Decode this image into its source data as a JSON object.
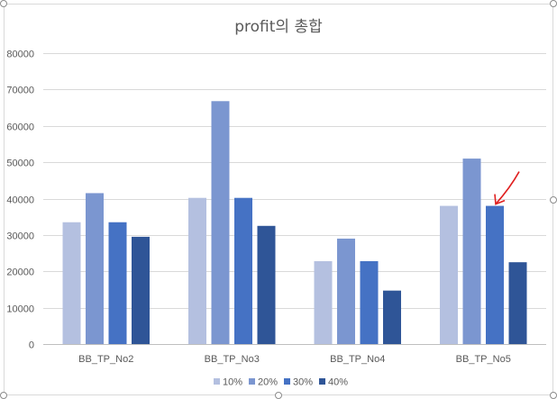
{
  "chart_data": {
    "type": "bar",
    "title": "profit의 총합",
    "categories": [
      "BB_TP_No2",
      "BB_TP_No3",
      "BB_TP_No4",
      "BB_TP_No5"
    ],
    "series": [
      {
        "name": "10%",
        "color": "#b4c0e0",
        "values": [
          33500,
          40200,
          22800,
          38000
        ]
      },
      {
        "name": "20%",
        "color": "#7b96d0",
        "values": [
          41500,
          66800,
          29000,
          51000
        ]
      },
      {
        "name": "30%",
        "color": "#4572c4",
        "values": [
          33500,
          40200,
          22800,
          38000
        ]
      },
      {
        "name": "40%",
        "color": "#2f5597",
        "values": [
          29500,
          32500,
          14700,
          22500
        ]
      }
    ],
    "ylim": [
      0,
      80000
    ],
    "yticks": [
      "0",
      "10000",
      "20000",
      "30000",
      "40000",
      "50000",
      "60000",
      "70000",
      "80000"
    ],
    "grid": true,
    "legend_position": "bottom",
    "annotation": {
      "type": "arrow",
      "color": "#e02020",
      "target_category": "BB_TP_No5",
      "target_series": "30%"
    }
  }
}
